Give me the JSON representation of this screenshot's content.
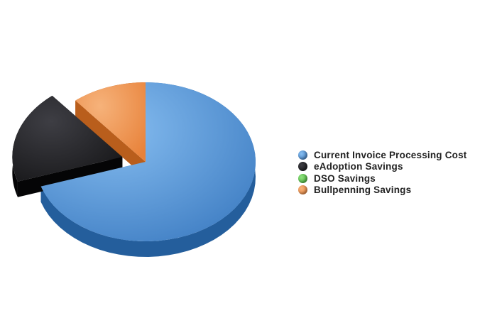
{
  "chart_data": {
    "type": "pie",
    "title": "",
    "legend_position": "right",
    "series": [
      {
        "name": "Current Invoice Processing Cost",
        "value": 70,
        "color": "#3d7cc2",
        "light": "#86bdf0",
        "side": "#245e9c"
      },
      {
        "name": "eAdoption Savings",
        "value": 19,
        "color": "#161618",
        "light": "#3e3e44",
        "side": "#050506"
      },
      {
        "name": "DSO Savings",
        "value": 0,
        "color": "#44b536",
        "light": "#8fe07f",
        "side": "#2c8a22"
      },
      {
        "name": "Bullpenning Savings",
        "value": 11,
        "color": "#e8823a",
        "light": "#f6b27a",
        "side": "#b95e1c"
      }
    ]
  }
}
